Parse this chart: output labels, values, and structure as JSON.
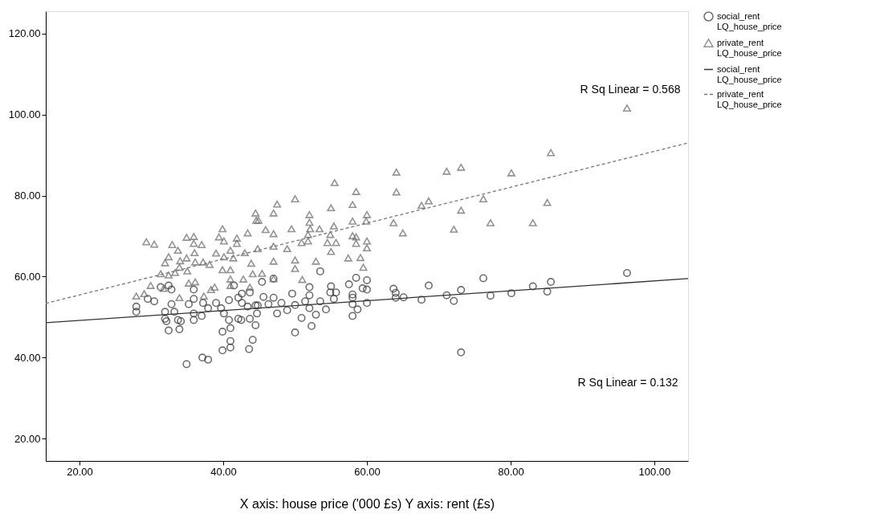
{
  "chart_data": {
    "type": "scatter",
    "xlabel": "X axis: house price ('000 £s)    Y axis: rent (£s)",
    "xlim": [
      15.3,
      104.7
    ],
    "ylim": [
      14.5,
      125.5
    ],
    "xticks": [
      {
        "value": 20,
        "label": "20.00"
      },
      {
        "value": 40,
        "label": "40.00"
      },
      {
        "value": 60,
        "label": "60.00"
      },
      {
        "value": 80,
        "label": "80.00"
      },
      {
        "value": 100,
        "label": "100.00"
      }
    ],
    "yticks": [
      {
        "value": 20,
        "label": "20.00"
      },
      {
        "value": 40,
        "label": "40.00"
      },
      {
        "value": 60,
        "label": "60.00"
      },
      {
        "value": 80,
        "label": "80.00"
      },
      {
        "value": 100,
        "label": "100.00"
      },
      {
        "value": 120,
        "label": "120.00"
      }
    ],
    "grid": false,
    "legend": "right",
    "series": [
      {
        "name": "social_rent\nLQ_house_price",
        "marker": "circle",
        "color": "#333333",
        "x": [
          96.2,
          76.2,
          68.6,
          85.6,
          83.1,
          63.7,
          64.0,
          73.1,
          85.1,
          80.1,
          71.1,
          77.2,
          64.0,
          65.1,
          67.6,
          72.1,
          73.1,
          34.9,
          37.1,
          37.9,
          39.9,
          41.0,
          41.0,
          44.1,
          43.6,
          32.4,
          33.9,
          39.9,
          41.0,
          40.8,
          42.1,
          27.9,
          27.9,
          31.9,
          31.9,
          34.1,
          32.8,
          30.4,
          29.5,
          32.8,
          31.3,
          35.9,
          35.9,
          35.2,
          37.2,
          35.9,
          35.9,
          37.0,
          37.9,
          39.0,
          39.7,
          40.1,
          40.8,
          42.1,
          42.6,
          43.4,
          44.5,
          42.6,
          43.7,
          41.5,
          42.5,
          43.7,
          44.5,
          32.4,
          32.1,
          33.2,
          33.7,
          53.5,
          58.5,
          60.0,
          57.5,
          52.0,
          55.0,
          59.4,
          60.0,
          49.6,
          55.7,
          58.0,
          58.0,
          52.0,
          54.9,
          45.6,
          47.0,
          53.5,
          51.4,
          55.4,
          60.0,
          50.0,
          48.9,
          52.0,
          54.3,
          58.0,
          58.7,
          47.5,
          52.9,
          50.9,
          58.0,
          52.3,
          50.0,
          44.8,
          44.7,
          46.3,
          48.1,
          45.4,
          47.0
        ],
        "values": [
          60.9,
          59.6,
          57.8,
          58.7,
          57.6,
          57.0,
          56.0,
          56.7,
          56.3,
          55.9,
          55.4,
          55.3,
          54.8,
          54.9,
          54.3,
          54.0,
          41.3,
          38.4,
          40.0,
          39.5,
          41.8,
          42.5,
          44.1,
          44.4,
          42.1,
          46.7,
          47.0,
          46.4,
          47.3,
          49.3,
          49.6,
          52.6,
          51.3,
          49.6,
          51.3,
          49.0,
          53.2,
          53.9,
          54.5,
          56.8,
          57.4,
          56.8,
          54.5,
          53.2,
          53.5,
          50.9,
          49.3,
          50.3,
          52.2,
          53.5,
          52.2,
          50.9,
          54.2,
          54.8,
          53.5,
          52.6,
          52.9,
          55.8,
          56.1,
          57.8,
          49.3,
          49.6,
          48.0,
          57.8,
          49.0,
          51.3,
          49.3,
          61.3,
          59.7,
          59.1,
          58.1,
          57.4,
          57.6,
          57.1,
          56.8,
          55.8,
          56.1,
          55.6,
          54.8,
          55.4,
          56.1,
          55.0,
          54.8,
          53.9,
          53.9,
          54.5,
          53.5,
          53.0,
          51.7,
          52.2,
          51.9,
          53.2,
          51.9,
          50.9,
          50.6,
          49.8,
          50.3,
          47.8,
          46.2,
          52.9,
          50.9,
          53.2,
          53.5,
          58.7,
          59.5
        ]
      },
      {
        "name": "private_rent\nLQ_house_price",
        "marker": "triangle",
        "color": "#666666",
        "x": [
          96.2,
          85.6,
          64.1,
          71.1,
          73.1,
          80.1,
          64.1,
          76.2,
          68.6,
          67.6,
          85.1,
          73.1,
          63.7,
          65.0,
          72.1,
          77.2,
          83.1,
          29.3,
          30.4,
          32.9,
          33.7,
          34.9,
          35.9,
          35.9,
          37.0,
          36.0,
          32.4,
          31.9,
          34.0,
          34.9,
          36.1,
          37.2,
          38.1,
          33.9,
          35.0,
          33.3,
          31.3,
          32.4,
          39.0,
          39.9,
          39.4,
          40.1,
          41.0,
          41.9,
          41.9,
          43.4,
          44.5,
          44.6,
          43.0,
          44.8,
          40.1,
          41.4,
          39.9,
          41.0,
          41.0,
          42.8,
          43.9,
          44.1,
          35.2,
          36.1,
          29.9,
          27.9,
          29.0,
          31.7,
          33.9,
          37.3,
          38.3,
          38.8,
          41.0,
          43.7,
          55.5,
          58.5,
          50.0,
          47.5,
          47.0,
          44.9,
          55.0,
          58.0,
          52.0,
          60.0,
          59.9,
          52.0,
          49.5,
          45.9,
          47.0,
          52.1,
          53.4,
          55.4,
          58.0,
          58.0,
          58.5,
          54.9,
          51.8,
          51.8,
          50.9,
          54.5,
          55.7,
          58.5,
          60.0,
          60.0,
          55.0,
          48.9,
          47.0,
          57.4,
          59.1,
          50.0,
          52.9,
          47.0,
          50.0,
          59.5,
          51.0,
          47.0,
          45.4
        ],
        "values": [
          101.6,
          90.6,
          85.8,
          86.0,
          87.0,
          85.6,
          80.9,
          79.2,
          78.7,
          77.6,
          78.3,
          76.4,
          73.3,
          70.8,
          71.7,
          73.3,
          73.3,
          68.6,
          68.0,
          67.9,
          66.5,
          69.7,
          69.9,
          68.2,
          67.9,
          65.9,
          64.9,
          63.4,
          63.9,
          64.6,
          63.6,
          63.6,
          63.0,
          62.3,
          61.4,
          61.0,
          60.7,
          60.4,
          65.8,
          71.8,
          69.8,
          68.8,
          66.5,
          69.5,
          68.2,
          70.8,
          75.7,
          73.9,
          65.9,
          66.9,
          64.9,
          64.6,
          61.7,
          61.7,
          59.4,
          59.4,
          63.3,
          60.7,
          58.4,
          58.7,
          57.8,
          55.2,
          55.8,
          57.1,
          54.8,
          55.2,
          56.8,
          57.4,
          57.8,
          57.4,
          83.2,
          81.0,
          79.2,
          77.9,
          75.7,
          73.9,
          77.0,
          77.8,
          75.3,
          75.3,
          73.7,
          73.4,
          71.8,
          71.6,
          70.6,
          71.8,
          71.8,
          72.5,
          73.7,
          70.1,
          69.8,
          70.4,
          70.4,
          68.8,
          68.4,
          68.4,
          68.4,
          68.2,
          68.8,
          67.1,
          66.2,
          66.9,
          67.5,
          64.6,
          64.7,
          64.1,
          63.8,
          63.8,
          62.0,
          62.3,
          59.3,
          59.5,
          60.8
        ]
      },
      {
        "name": "social_rent\nLQ_house_price",
        "type": "line",
        "line_style": "solid",
        "color": "#333333",
        "x": [
          15.3,
          104.7
        ],
        "values": [
          48.6,
          59.5
        ]
      },
      {
        "name": "private_rent\nLQ_house_price",
        "type": "line",
        "line_style": "dashed",
        "color": "#777777",
        "x": [
          15.3,
          104.7
        ],
        "values": [
          53.4,
          93.0
        ]
      }
    ],
    "annotations": [
      "R Sq Linear = 0.568",
      "R Sq Linear = 0.132"
    ]
  }
}
